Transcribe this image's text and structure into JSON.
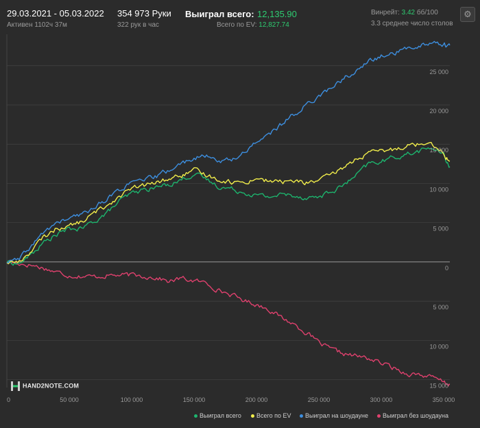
{
  "header": {
    "date_range": "29.03.2021 - 05.03.2022",
    "active_time": "Активен 1102ч 37м",
    "hands": "354 973 Руки",
    "hands_per_hour": "322 рук в час",
    "won_total_label": "Выиграл всего:",
    "won_total_value": "12,135.90",
    "ev_total_label": "Всего по EV:",
    "ev_total_value": "12,827.74",
    "winrate_label": "Винрейт:",
    "winrate_value": "3.42",
    "winrate_unit": "бб/100",
    "avg_tables": "3.3 среднее число столов"
  },
  "logo": {
    "text": "HAND2NOTE.COM"
  },
  "colors": {
    "won": "#1db56e",
    "ev": "#f2ee4b",
    "showdown": "#3d8fe0",
    "nonshowdown": "#e0416e",
    "grid": "#444444",
    "zero": "#bdbdbd"
  },
  "chart_data": {
    "type": "line",
    "xlim": [
      0,
      354973
    ],
    "ylim": [
      -16000,
      29000
    ],
    "x_ticks": [
      0,
      50000,
      100000,
      150000,
      200000,
      250000,
      300000,
      350000
    ],
    "x_tick_labels": [
      "0",
      "50 000",
      "100 000",
      "150 000",
      "200 000",
      "250 000",
      "300 000",
      "350 000"
    ],
    "y_ticks": [
      25000,
      20000,
      15000,
      10000,
      5000,
      0,
      -5000,
      -10000,
      -15000
    ],
    "y_tick_labels": [
      "25 000",
      "20 000",
      "15 000",
      "10 000",
      "5 000",
      "0",
      "5 000",
      "10 000",
      "15 000"
    ],
    "grid": true,
    "legend_position": "bottom-right",
    "x": [
      0,
      10000,
      20000,
      30000,
      40000,
      50000,
      60000,
      70000,
      80000,
      90000,
      100000,
      110000,
      120000,
      130000,
      140000,
      150000,
      160000,
      170000,
      180000,
      190000,
      200000,
      210000,
      220000,
      230000,
      240000,
      250000,
      260000,
      270000,
      280000,
      290000,
      300000,
      310000,
      320000,
      330000,
      340000,
      350000,
      354973
    ],
    "series": [
      {
        "name": "Выиграл всего",
        "color_key": "won",
        "values": [
          0,
          -200,
          1000,
          2500,
          3500,
          4200,
          4200,
          5200,
          6200,
          7700,
          8700,
          9200,
          9500,
          9900,
          10500,
          11200,
          10500,
          9600,
          9300,
          8900,
          8500,
          8300,
          8600,
          8500,
          8200,
          8300,
          8900,
          9800,
          11000,
          12500,
          12800,
          13300,
          13700,
          14100,
          14600,
          13600,
          12136
        ]
      },
      {
        "name": "Всего по EV",
        "color_key": "ev",
        "values": [
          0,
          0,
          1500,
          3200,
          4300,
          4600,
          5100,
          6200,
          7200,
          8400,
          9300,
          9700,
          10100,
          10600,
          11000,
          11600,
          11100,
          10500,
          10200,
          10100,
          10700,
          10300,
          10200,
          10300,
          10100,
          10400,
          11000,
          12100,
          13100,
          13800,
          14100,
          14300,
          14900,
          15000,
          15400,
          13800,
          12828
        ]
      },
      {
        "name": "Выиграл на шоудауне",
        "color_key": "showdown",
        "values": [
          0,
          300,
          2100,
          3800,
          5000,
          5500,
          6000,
          7000,
          8000,
          9200,
          10000,
          10400,
          10900,
          11700,
          12500,
          13300,
          13400,
          12900,
          13000,
          13900,
          15400,
          16200,
          17500,
          18800,
          20000,
          21200,
          22100,
          23400,
          24300,
          25500,
          26200,
          26600,
          27100,
          27600,
          28000,
          27700,
          27600
        ]
      },
      {
        "name": "Выиграл без шоудауна",
        "color_key": "nonshowdown",
        "values": [
          0,
          -200,
          -400,
          -800,
          -1300,
          -1700,
          -1800,
          -1900,
          -1700,
          -1700,
          -1700,
          -1800,
          -2000,
          -2500,
          -2100,
          -2400,
          -2700,
          -3600,
          -4200,
          -4900,
          -5400,
          -6000,
          -7100,
          -7900,
          -9000,
          -10300,
          -11200,
          -11700,
          -12000,
          -12300,
          -12900,
          -13500,
          -14200,
          -14300,
          -14700,
          -15300,
          -15600
        ]
      }
    ]
  },
  "legend": [
    {
      "label": "Выиграл всего",
      "color_key": "won"
    },
    {
      "label": "Всего по EV",
      "color_key": "ev"
    },
    {
      "label": "Выиграл на шоудауне",
      "color_key": "showdown"
    },
    {
      "label": "Выиграл без шоудауна",
      "color_key": "nonshowdown"
    }
  ]
}
